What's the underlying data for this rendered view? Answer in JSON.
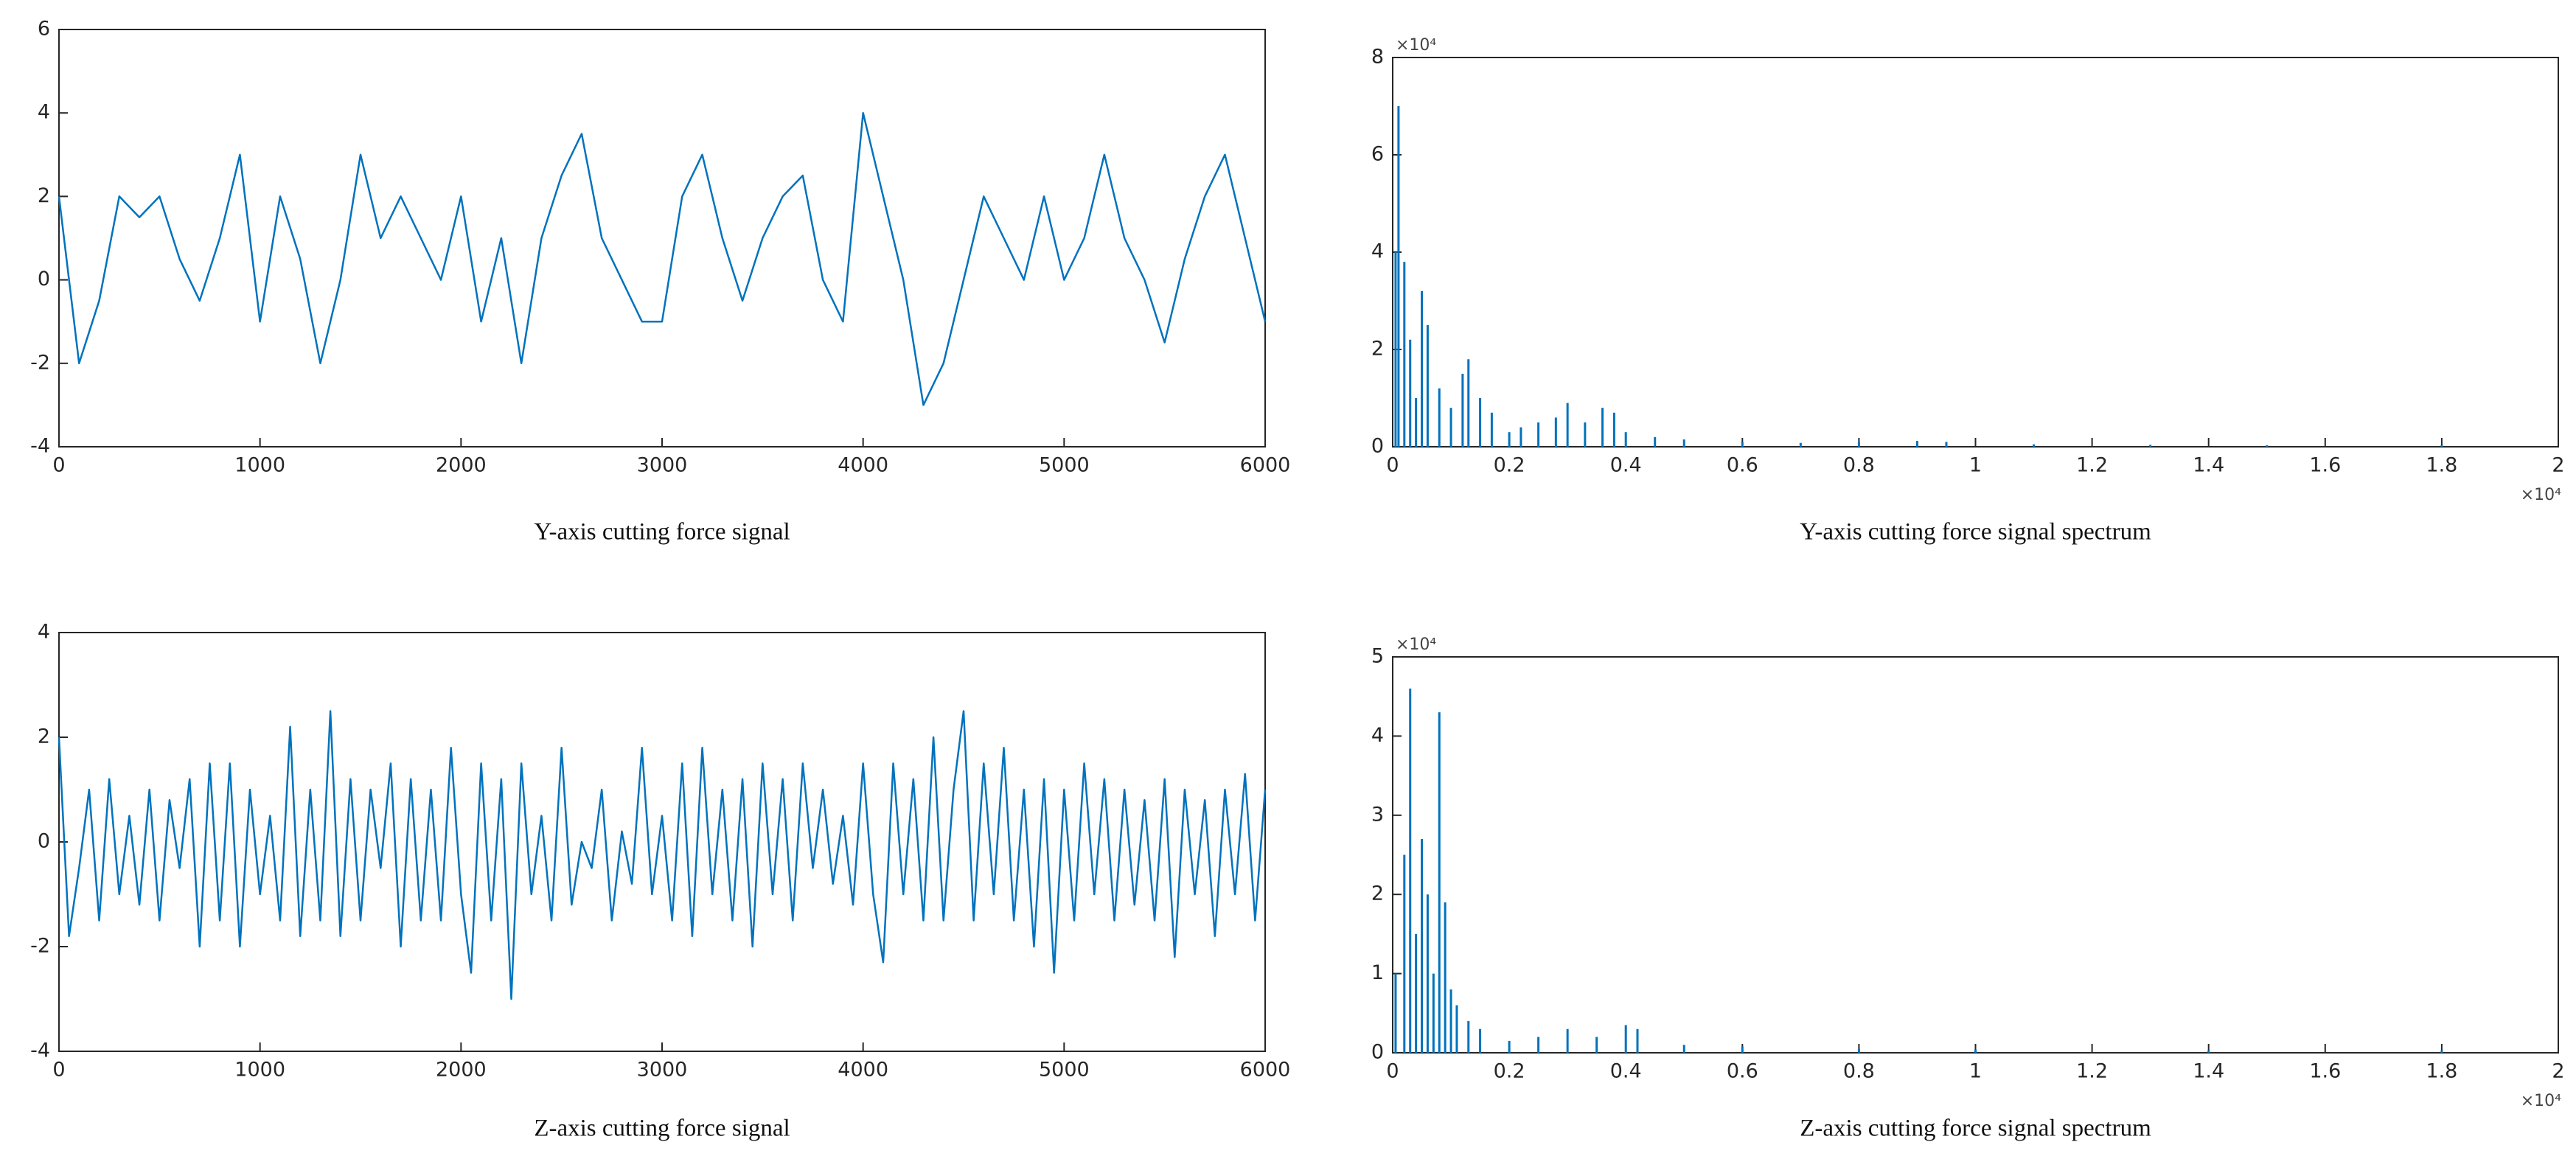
{
  "chart_data": [
    {
      "type": "line",
      "caption": "Y-axis cutting force signal",
      "color": "#0072bd",
      "x": [
        0,
        100,
        200,
        300,
        400,
        500,
        600,
        700,
        800,
        900,
        1000,
        1100,
        1200,
        1300,
        1400,
        1500,
        1600,
        1700,
        1800,
        1900,
        2000,
        2100,
        2200,
        2300,
        2400,
        2500,
        2600,
        2700,
        2800,
        2900,
        3000,
        3100,
        3200,
        3300,
        3400,
        3500,
        3600,
        3700,
        3800,
        3900,
        4000,
        4100,
        4200,
        4300,
        4400,
        4500,
        4600,
        4700,
        4800,
        4900,
        5000,
        5100,
        5200,
        5300,
        5400,
        5500,
        5600,
        5700,
        5800,
        5900,
        6000
      ],
      "values": [
        2,
        -2,
        -0.5,
        2,
        1.5,
        2,
        0.5,
        -0.5,
        1,
        3,
        -1,
        2,
        0.5,
        -2,
        0,
        3,
        1,
        2,
        1,
        0,
        2,
        -1,
        1,
        -2,
        1,
        2.5,
        3.5,
        1,
        0,
        -1,
        -1,
        2,
        3,
        1,
        -0.5,
        1,
        2,
        2.5,
        0,
        -1,
        4,
        2,
        0,
        -3,
        -2,
        0,
        2,
        1,
        0,
        2,
        0,
        1,
        3,
        1,
        0,
        -1.5,
        0.5,
        2,
        3,
        1,
        -1
      ],
      "xlim": [
        0,
        6000
      ],
      "xticks": [
        0,
        1000,
        2000,
        3000,
        4000,
        5000,
        6000
      ],
      "ylim": [
        -4,
        6
      ],
      "yticks": [
        -4,
        -2,
        0,
        2,
        4,
        6
      ]
    },
    {
      "type": "stem",
      "caption": "Y-axis cutting force signal spectrum",
      "color": "#0072bd",
      "x_multiplier": "×10⁴",
      "y_multiplier": "×10⁴",
      "x": [
        0.005,
        0.01,
        0.02,
        0.03,
        0.04,
        0.05,
        0.06,
        0.08,
        0.1,
        0.12,
        0.13,
        0.15,
        0.17,
        0.2,
        0.22,
        0.25,
        0.28,
        0.3,
        0.33,
        0.36,
        0.38,
        0.4,
        0.45,
        0.5,
        0.6,
        0.7,
        0.8,
        0.9,
        0.95,
        1.1,
        1.3,
        1.5,
        1.8
      ],
      "values": [
        4,
        7,
        3.8,
        2.2,
        1,
        3.2,
        2.5,
        1.2,
        0.8,
        1.5,
        1.8,
        1,
        0.7,
        0.3,
        0.4,
        0.5,
        0.6,
        0.9,
        0.5,
        0.8,
        0.7,
        0.3,
        0.2,
        0.15,
        0.1,
        0.08,
        0.1,
        0.12,
        0.1,
        0.05,
        0.04,
        0.03,
        0.03
      ],
      "xlim": [
        0,
        2
      ],
      "xticks": [
        0,
        0.2,
        0.4,
        0.6,
        0.8,
        1,
        1.2,
        1.4,
        1.6,
        1.8,
        2
      ],
      "ylim": [
        0,
        8
      ],
      "yticks": [
        0,
        2,
        4,
        6,
        8
      ]
    },
    {
      "type": "line",
      "caption": "Z-axis cutting force signal",
      "color": "#0072bd",
      "x": [
        0,
        50,
        100,
        150,
        200,
        250,
        300,
        350,
        400,
        450,
        500,
        550,
        600,
        650,
        700,
        750,
        800,
        850,
        900,
        950,
        1000,
        1050,
        1100,
        1150,
        1200,
        1250,
        1300,
        1350,
        1400,
        1450,
        1500,
        1550,
        1600,
        1650,
        1700,
        1750,
        1800,
        1850,
        1900,
        1950,
        2000,
        2050,
        2100,
        2150,
        2200,
        2250,
        2300,
        2350,
        2400,
        2450,
        2500,
        2550,
        2600,
        2650,
        2700,
        2750,
        2800,
        2850,
        2900,
        2950,
        3000,
        3050,
        3100,
        3150,
        3200,
        3250,
        3300,
        3350,
        3400,
        3450,
        3500,
        3550,
        3600,
        3650,
        3700,
        3750,
        3800,
        3850,
        3900,
        3950,
        4000,
        4050,
        4100,
        4150,
        4200,
        4250,
        4300,
        4350,
        4400,
        4450,
        4500,
        4550,
        4600,
        4650,
        4700,
        4750,
        4800,
        4850,
        4900,
        4950,
        5000,
        5050,
        5100,
        5150,
        5200,
        5250,
        5300,
        5350,
        5400,
        5450,
        5500,
        5550,
        5600,
        5650,
        5700,
        5750,
        5800,
        5850,
        5900,
        5950,
        6000
      ],
      "values": [
        2,
        -1.8,
        -0.5,
        1,
        -1.5,
        1.2,
        -1,
        0.5,
        -1.2,
        1,
        -1.5,
        0.8,
        -0.5,
        1.2,
        -2,
        1.5,
        -1.5,
        1.5,
        -2,
        1,
        -1,
        0.5,
        -1.5,
        2.2,
        -1.8,
        1,
        -1.5,
        2.5,
        -1.8,
        1.2,
        -1.5,
        1,
        -0.5,
        1.5,
        -2,
        1.2,
        -1.5,
        1,
        -1.5,
        1.8,
        -1,
        -2.5,
        1.5,
        -1.5,
        1.2,
        -3,
        1.5,
        -1,
        0.5,
        -1.5,
        1.8,
        -1.2,
        0,
        -0.5,
        1,
        -1.5,
        0.2,
        -0.8,
        1.8,
        -1,
        0.5,
        -1.5,
        1.5,
        -1.8,
        1.8,
        -1,
        1,
        -1.5,
        1.2,
        -2,
        1.5,
        -1,
        1.2,
        -1.5,
        1.5,
        -0.5,
        1,
        -0.8,
        0.5,
        -1.2,
        1.5,
        -1,
        -2.3,
        1.5,
        -1,
        1.2,
        -1.5,
        2,
        -1.5,
        1,
        2.5,
        -1.5,
        1.5,
        -1,
        1.8,
        -1.5,
        1,
        -2,
        1.2,
        -2.5,
        1,
        -1.5,
        1.5,
        -1,
        1.2,
        -1.5,
        1,
        -1.2,
        0.8,
        -1.5,
        1.2,
        -2.2,
        1,
        -1,
        0.8,
        -1.8,
        1,
        -1,
        1.3,
        -1.5,
        1
      ],
      "xlim": [
        0,
        6000
      ],
      "xticks": [
        0,
        1000,
        2000,
        3000,
        4000,
        5000,
        6000
      ],
      "ylim": [
        -4,
        4
      ],
      "yticks": [
        -4,
        -2,
        0,
        2,
        4
      ]
    },
    {
      "type": "stem",
      "caption": "Z-axis cutting force signal spectrum",
      "color": "#0072bd",
      "x_multiplier": "×10⁴",
      "y_multiplier": "×10⁴",
      "x": [
        0.005,
        0.02,
        0.03,
        0.04,
        0.05,
        0.06,
        0.07,
        0.08,
        0.09,
        0.1,
        0.11,
        0.13,
        0.15,
        0.2,
        0.25,
        0.3,
        0.35,
        0.4,
        0.42,
        0.5,
        0.6,
        0.8,
        1,
        1.4,
        1.8
      ],
      "values": [
        1,
        2.5,
        4.6,
        1.5,
        2.7,
        2,
        1,
        4.3,
        1.9,
        0.8,
        0.6,
        0.4,
        0.3,
        0.15,
        0.2,
        0.3,
        0.2,
        0.35,
        0.3,
        0.1,
        0.08,
        0.05,
        0.04,
        0.03,
        0.03
      ],
      "xlim": [
        0,
        2
      ],
      "xticks": [
        0,
        0.2,
        0.4,
        0.6,
        0.8,
        1,
        1.2,
        1.4,
        1.6,
        1.8,
        2
      ],
      "ylim": [
        0,
        5
      ],
      "yticks": [
        0,
        1,
        2,
        3,
        4,
        5
      ]
    }
  ]
}
